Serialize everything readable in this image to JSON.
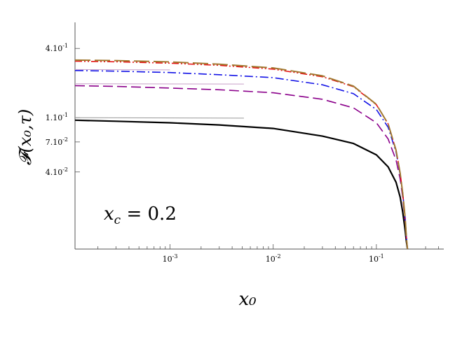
{
  "chart_data": {
    "type": "line",
    "title": "",
    "xlabel": "x₀",
    "ylabel": "𝓕(x₀,τ)",
    "xscale": "log",
    "yscale": "log",
    "xlim": [
      0.00012,
      0.45
    ],
    "ylim": [
      0.0095,
      0.65
    ],
    "grid": false,
    "legend": "none",
    "annotation": "x_c = 0.2",
    "annotation_parts": {
      "var": "x",
      "sub": "c",
      "rest": " = 0.2"
    },
    "x_ticks": [
      {
        "value": 0.001,
        "label_base": "10",
        "label_exp": "-3"
      },
      {
        "value": 0.01,
        "label_base": "10",
        "label_exp": "-2"
      },
      {
        "value": 0.1,
        "label_base": "10",
        "label_exp": "-1"
      }
    ],
    "y_ticks": [
      {
        "value": 0.4,
        "label_base": "4.10",
        "label_exp": "-1"
      },
      {
        "value": 0.11,
        "label_base": "1.10",
        "label_exp": "-1"
      },
      {
        "value": 0.07,
        "label_base": "7.10",
        "label_exp": "-2"
      },
      {
        "value": 0.04,
        "label_base": "4.10",
        "label_exp": "-2"
      }
    ],
    "series": [
      {
        "color": "#000000",
        "dash": "",
        "width": 2.2,
        "x": [
          0.00012,
          0.0003,
          0.001,
          0.003,
          0.01,
          0.03,
          0.06,
          0.1,
          0.13,
          0.155,
          0.17,
          0.18,
          0.19,
          0.195,
          0.2
        ],
        "y": [
          0.105,
          0.103,
          0.1,
          0.096,
          0.09,
          0.078,
          0.068,
          0.055,
          0.044,
          0.033,
          0.025,
          0.019,
          0.0135,
          0.011,
          0.0095
        ]
      },
      {
        "color": "#8b008b",
        "dash": "14,6",
        "width": 1.6,
        "x": [
          0.00012,
          0.0003,
          0.001,
          0.003,
          0.01,
          0.03,
          0.06,
          0.1,
          0.13,
          0.155,
          0.17,
          0.18,
          0.19,
          0.195,
          0.2
        ],
        "y": [
          0.2,
          0.197,
          0.191,
          0.185,
          0.175,
          0.155,
          0.132,
          0.1,
          0.074,
          0.05,
          0.035,
          0.025,
          0.016,
          0.012,
          0.0095
        ]
      },
      {
        "color": "#1414e6",
        "dash": "12,4,2,4",
        "width": 1.6,
        "x": [
          0.00012,
          0.0003,
          0.001,
          0.003,
          0.01,
          0.03,
          0.06,
          0.1,
          0.13,
          0.155,
          0.17,
          0.18,
          0.19,
          0.195,
          0.2
        ],
        "y": [
          0.265,
          0.262,
          0.255,
          0.245,
          0.232,
          0.203,
          0.172,
          0.128,
          0.092,
          0.058,
          0.038,
          0.027,
          0.017,
          0.012,
          0.0095
        ]
      },
      {
        "color": "#e61414",
        "dash": "10,3,2,3,2,3",
        "width": 1.6,
        "x": [
          0.00012,
          0.0003,
          0.001,
          0.003,
          0.01,
          0.03,
          0.06,
          0.1,
          0.13,
          0.155,
          0.17,
          0.18,
          0.19,
          0.195,
          0.2
        ],
        "y": [
          0.315,
          0.312,
          0.304,
          0.292,
          0.272,
          0.236,
          0.196,
          0.14,
          0.098,
          0.06,
          0.039,
          0.027,
          0.017,
          0.012,
          0.0095
        ]
      },
      {
        "color": "#a07830",
        "dash": "22,6",
        "width": 2.0,
        "x": [
          0.00012,
          0.0003,
          0.001,
          0.003,
          0.01,
          0.03,
          0.06,
          0.1,
          0.13,
          0.155,
          0.17,
          0.18,
          0.19,
          0.195,
          0.2
        ],
        "y": [
          0.322,
          0.319,
          0.311,
          0.298,
          0.278,
          0.24,
          0.198,
          0.141,
          0.098,
          0.06,
          0.039,
          0.027,
          0.017,
          0.012,
          0.0095
        ]
      },
      {
        "color": "#999999",
        "dash": "",
        "width": 1.0,
        "x": [
          0.00012,
          0.0052
        ],
        "y": [
          0.11,
          0.109
        ]
      },
      {
        "color": "#c8a0c8",
        "dash": "",
        "width": 1.0,
        "x": [
          0.00012,
          0.0052
        ],
        "y": [
          0.207,
          0.206
        ]
      },
      {
        "color": "#c8a0c8",
        "dash": "",
        "width": 1.0,
        "x": [
          0.00012,
          0.001
        ],
        "y": [
          0.27,
          0.268
        ]
      }
    ]
  }
}
